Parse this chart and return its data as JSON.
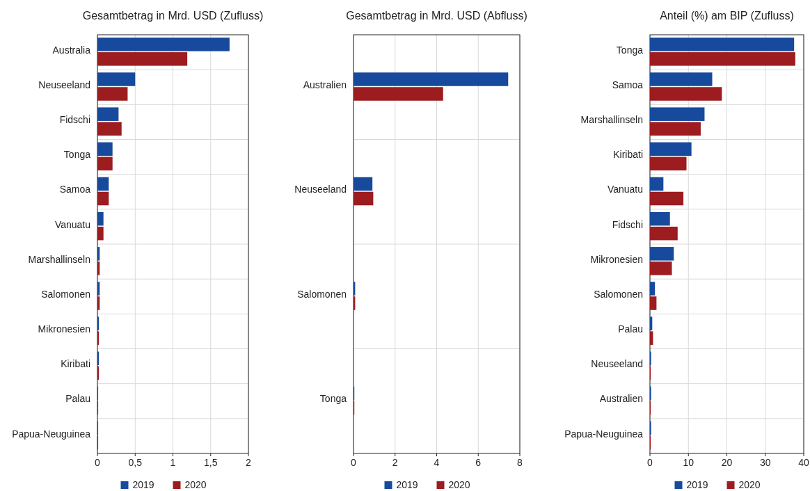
{
  "chart_data": [
    {
      "type": "bar",
      "orientation": "horizontal",
      "title": "Gesamtbetrag in Mrd. USD (Zufluss)",
      "categories": [
        "Australia",
        "Neuseeland",
        "Fidschi",
        "Tonga",
        "Samoa",
        "Vanuatu",
        "Marshallinseln",
        "Salomonen",
        "Mikronesien",
        "Kiribati",
        "Palau",
        "Papua-Neuguinea"
      ],
      "series": [
        {
          "name": "2019",
          "color": "#174a9c",
          "values": [
            1.75,
            0.5,
            0.28,
            0.2,
            0.15,
            0.08,
            0.03,
            0.03,
            0.02,
            0.02,
            0.01,
            0.01
          ]
        },
        {
          "name": "2020",
          "color": "#9c1c20",
          "values": [
            1.19,
            0.4,
            0.32,
            0.2,
            0.15,
            0.08,
            0.03,
            0.03,
            0.02,
            0.02,
            0.01,
            0.01
          ]
        }
      ],
      "xlim": [
        0,
        2
      ],
      "xticks": [
        0,
        {
          "value": 0.5,
          "label": "0,5"
        },
        1,
        {
          "value": 1.5,
          "label": "1,5"
        },
        2
      ],
      "grid": true,
      "legend": "bottom"
    },
    {
      "type": "bar",
      "orientation": "horizontal",
      "title": "Gesamtbetrag in Mrd. USD (Abfluss)",
      "categories": [
        "Australien",
        "Neuseeland",
        "Salomonen",
        "Tonga"
      ],
      "series": [
        {
          "name": "2019",
          "color": "#174a9c",
          "values": [
            7.44,
            0.91,
            0.08,
            0.04
          ]
        },
        {
          "name": "2020",
          "color": "#9c1c20",
          "values": [
            4.31,
            0.95,
            0.08,
            0.04
          ]
        }
      ],
      "xlim": [
        0,
        8
      ],
      "xticks": [
        0,
        2,
        4,
        6,
        8
      ],
      "grid": true,
      "legend": "bottom"
    },
    {
      "type": "bar",
      "orientation": "horizontal",
      "title": "Anteil (%) am BIP (Zufluss)",
      "categories": [
        "Tonga",
        "Samoa",
        "Marshallinseln",
        "Kiribati",
        "Vanuatu",
        "Fidschi",
        "Mikronesien",
        "Salomonen",
        "Palau",
        "Neuseeland",
        "Australien",
        "Papua-Neuguinea"
      ],
      "series": [
        {
          "name": "2019",
          "color": "#174a9c",
          "values": [
            37.5,
            16.2,
            14.2,
            10.8,
            3.5,
            5.2,
            6.2,
            1.3,
            0.6,
            0.3,
            0.3,
            0.3
          ]
        },
        {
          "name": "2020",
          "color": "#9c1c20",
          "values": [
            37.8,
            18.7,
            13.2,
            9.5,
            8.7,
            7.2,
            5.7,
            1.7,
            0.8,
            0.2,
            0.2,
            0.2
          ]
        }
      ],
      "xlim": [
        0,
        40
      ],
      "xticks": [
        0,
        10,
        20,
        30,
        40
      ],
      "grid": true,
      "legend": "bottom"
    }
  ]
}
